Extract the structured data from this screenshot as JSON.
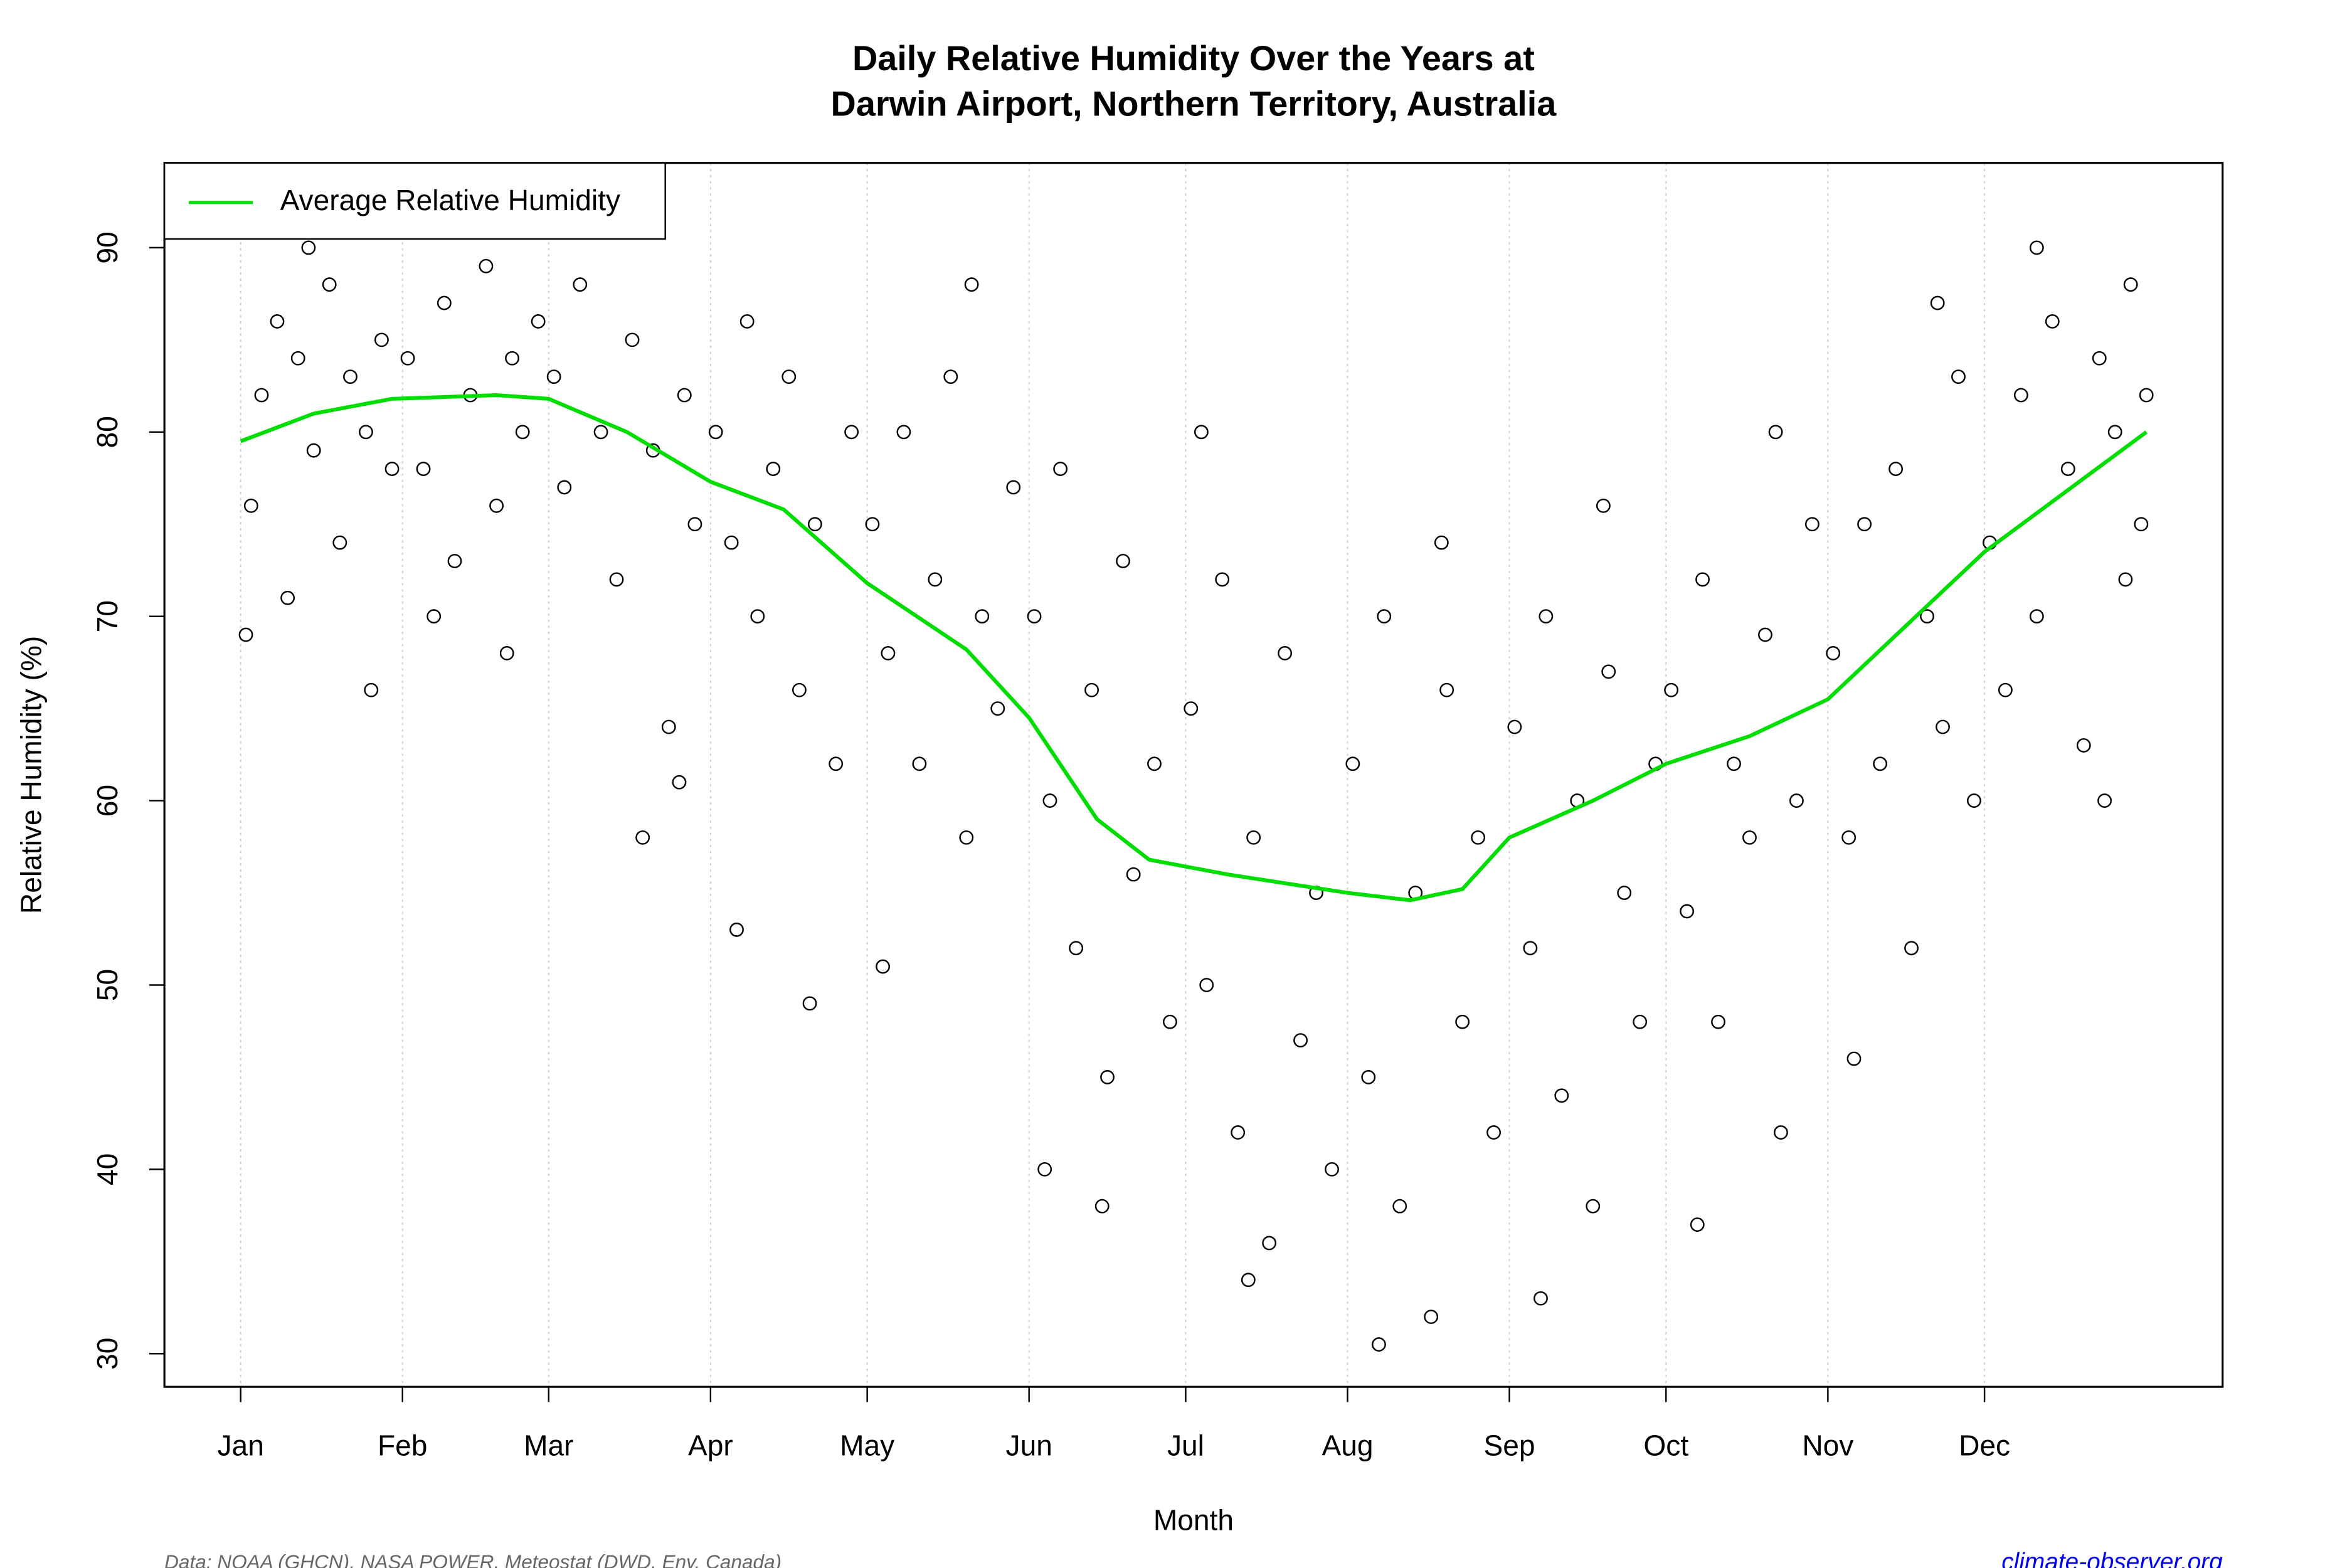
{
  "chart_data": {
    "type": "scatter",
    "title_lines": [
      "Daily Relative Humidity Over the Years at",
      "Darwin Airport, Northern Territory, Australia"
    ],
    "x_label": "Month",
    "y_label": "Relative Humidity  (%)",
    "source": "Data: NOAA (GHCN), NASA POWER, Meteostat (DWD, Env. Canada)",
    "site": "climate-observer.org",
    "point_color": "#000000",
    "x": [
      5,
      3,
      8,
      10,
      12,
      15,
      18,
      20,
      22,
      25,
      28,
      30,
      2,
      14,
      26,
      33,
      36,
      40,
      42,
      45,
      48,
      50,
      53,
      55,
      58,
      38,
      52,
      61,
      63,
      66,
      70,
      73,
      76,
      80,
      83,
      86,
      88,
      78,
      85,
      92,
      95,
      98,
      100,
      103,
      106,
      108,
      111,
      115,
      118,
      96,
      110,
      122,
      125,
      128,
      131,
      134,
      137,
      140,
      143,
      146,
      149,
      124,
      141,
      153,
      156,
      158,
      161,
      164,
      167,
      170,
      172,
      176,
      179,
      155,
      166,
      183,
      186,
      189,
      192,
      195,
      198,
      201,
      204,
      207,
      210,
      185,
      194,
      214,
      217,
      220,
      223,
      226,
      229,
      232,
      235,
      238,
      241,
      219,
      231,
      245,
      248,
      251,
      254,
      257,
      260,
      263,
      266,
      269,
      272,
      250,
      262,
      275,
      278,
      281,
      284,
      287,
      290,
      293,
      296,
      299,
      302,
      280,
      295,
      306,
      309,
      312,
      315,
      318,
      321,
      324,
      327,
      330,
      333,
      310,
      326,
      336,
      339,
      342,
      345,
      348,
      351,
      354,
      357,
      360,
      363,
      345,
      358,
      365,
      366,
      362
    ],
    "values": [
      82,
      76,
      86,
      71,
      84,
      79,
      88,
      74,
      83,
      80,
      85,
      78,
      69,
      90,
      66,
      84,
      78,
      87,
      73,
      82,
      89,
      76,
      84,
      80,
      86,
      70,
      68,
      83,
      77,
      88,
      80,
      72,
      85,
      79,
      64,
      82,
      75,
      58,
      61,
      80,
      74,
      86,
      70,
      78,
      83,
      66,
      75,
      62,
      80,
      53,
      49,
      75,
      68,
      80,
      62,
      72,
      83,
      58,
      70,
      65,
      77,
      51,
      88,
      70,
      60,
      78,
      52,
      66,
      45,
      73,
      56,
      62,
      48,
      40,
      38,
      65,
      50,
      72,
      42,
      58,
      36,
      68,
      47,
      55,
      40,
      80,
      34,
      62,
      45,
      70,
      38,
      55,
      32,
      66,
      48,
      58,
      42,
      30.5,
      74,
      64,
      52,
      70,
      44,
      60,
      38,
      67,
      55,
      48,
      62,
      33,
      76,
      66,
      54,
      72,
      48,
      62,
      58,
      69,
      42,
      60,
      75,
      37,
      80,
      68,
      58,
      75,
      62,
      78,
      52,
      70,
      64,
      83,
      60,
      46,
      87,
      74,
      66,
      82,
      70,
      86,
      78,
      63,
      84,
      80,
      88,
      90,
      60,
      75,
      82,
      72
    ],
    "series": [
      {
        "name": "Average Relative Humidity",
        "color": "#00dd00",
        "x": [
          1,
          15,
          30,
          50,
          60,
          75,
          91,
          105,
          121,
          140,
          152,
          165,
          175,
          190,
          213,
          225,
          235,
          244,
          260,
          274,
          290,
          305,
          320,
          335,
          366
        ],
        "values": [
          79.5,
          81,
          81.8,
          82,
          81.8,
          80,
          77.3,
          75.8,
          71.8,
          68.2,
          64.5,
          59,
          56.8,
          56,
          55,
          54.6,
          55.2,
          58,
          60,
          62,
          63.5,
          65.5,
          69.5,
          73.5,
          80
        ]
      }
    ],
    "xlim": [
      -13.6,
      380.6
    ],
    "ylim": [
      28.2,
      94.6
    ],
    "xticks": [
      {
        "value": 1,
        "label": "Jan"
      },
      {
        "value": 32,
        "label": "Feb"
      },
      {
        "value": 60,
        "label": "Mar"
      },
      {
        "value": 91,
        "label": "Apr"
      },
      {
        "value": 121,
        "label": "May"
      },
      {
        "value": 152,
        "label": "Jun"
      },
      {
        "value": 182,
        "label": "Jul"
      },
      {
        "value": 213,
        "label": "Aug"
      },
      {
        "value": 244,
        "label": "Sep"
      },
      {
        "value": 274,
        "label": "Oct"
      },
      {
        "value": 305,
        "label": "Nov"
      },
      {
        "value": 335,
        "label": "Dec"
      }
    ],
    "yticks": [
      30,
      40,
      50,
      60,
      70,
      80,
      90
    ],
    "grid": true,
    "legend": "top-left"
  }
}
